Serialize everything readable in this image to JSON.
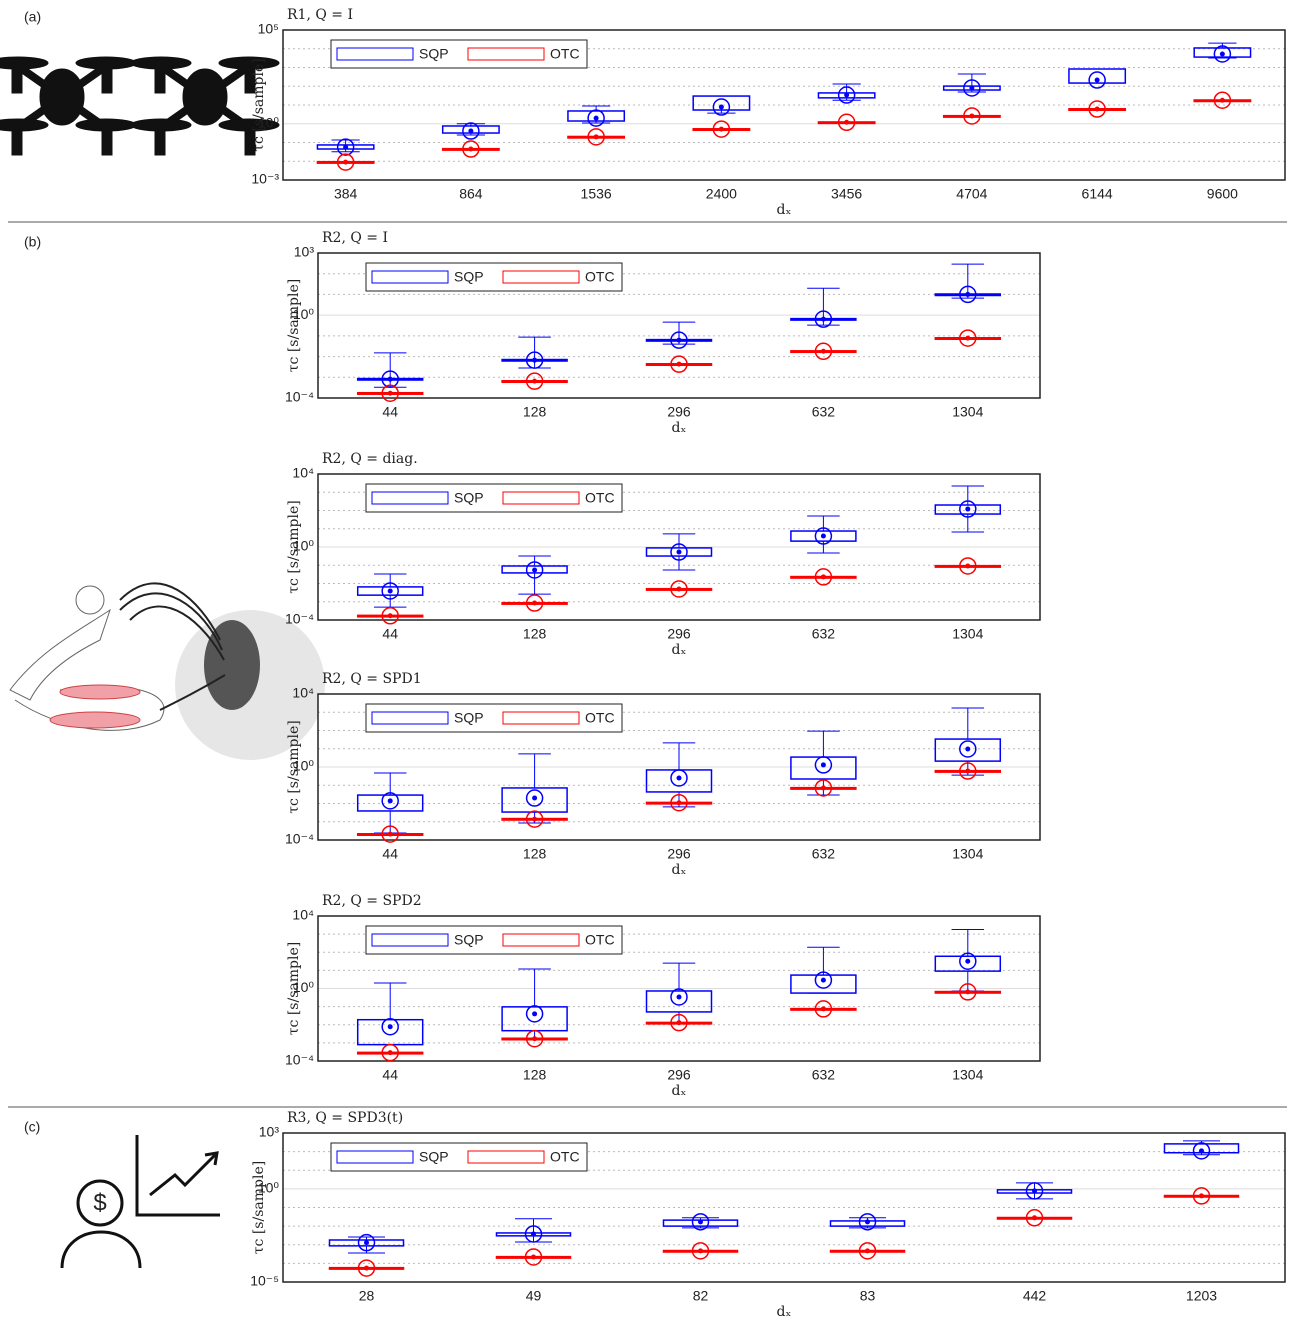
{
  "panel_labels": [
    "(a)",
    "(b)",
    "(c)"
  ],
  "chart_data": [
    {
      "type": "box",
      "title": "R1, Q = I",
      "xlabel": "dₓ",
      "ylabel": "τc [s/sample]",
      "log": true,
      "grid": true,
      "legend": "upper left",
      "categories": [
        "384",
        "864",
        "1536",
        "2400",
        "3456",
        "4704",
        "6144",
        "9600"
      ],
      "ylim": [
        0.001,
        100000
      ],
      "yticks": [
        {
          "value": 0.001,
          "label": "10⁻³"
        },
        {
          "value": 1,
          "label": "10⁰"
        },
        {
          "value": 100000,
          "label": "10⁵"
        }
      ],
      "minor_yticks": [
        0.01,
        0.1,
        10,
        100,
        1000,
        10000
      ],
      "series": [
        {
          "name": "SQP",
          "color": "#0000ff",
          "median": [
            0.057,
            0.41,
            2.0,
            7.8,
            34,
            81,
            214,
            5250
          ],
          "q1": [
            0.045,
            0.32,
            1.4,
            5.4,
            24,
            63,
            148,
            3600
          ],
          "q3": [
            0.074,
            0.76,
            4.8,
            30,
            44,
            102,
            832,
            11000
          ],
          "whislo": [
            0.032,
            0.25,
            1.1,
            3.7,
            18,
            49,
            148,
            3200
          ],
          "whishi": [
            0.135,
            1.0,
            8.9,
            30,
            132,
            447,
            832,
            20000
          ]
        },
        {
          "name": "OTC",
          "color": "#ff0000",
          "median": [
            0.009,
            0.045,
            0.2,
            0.52,
            1.2,
            2.6,
            6.1,
            18
          ],
          "q1": [
            0.0085,
            0.042,
            0.19,
            0.5,
            1.15,
            2.5,
            5.9,
            17.5
          ],
          "q3": [
            0.0095,
            0.047,
            0.21,
            0.54,
            1.25,
            2.7,
            6.3,
            18.5
          ]
        }
      ]
    },
    {
      "type": "box",
      "title": "R2, Q = I",
      "xlabel": "dₓ",
      "ylabel": "τc [s/sample]",
      "log": true,
      "grid": true,
      "legend": "upper left",
      "categories": [
        "44",
        "128",
        "296",
        "632",
        "1304"
      ],
      "ylim": [
        0.0001,
        1000
      ],
      "yticks": [
        {
          "value": 0.0001,
          "label": "10⁻⁴"
        },
        {
          "value": 1,
          "label": "10⁰"
        },
        {
          "value": 1000,
          "label": "10³"
        }
      ],
      "minor_yticks": [
        0.001,
        0.01,
        0.1,
        10,
        100
      ],
      "series": [
        {
          "name": "SQP",
          "color": "#0000ff",
          "median": [
            0.00081,
            0.0067,
            0.062,
            0.64,
            10
          ],
          "q1": [
            0.00075,
            0.0062,
            0.058,
            0.6,
            9.5
          ],
          "q3": [
            0.00087,
            0.0072,
            0.066,
            0.68,
            10.5
          ],
          "whislo": [
            0.00033,
            0.0028,
            0.04,
            0.33,
            6.6
          ],
          "whishi": [
            0.015,
            0.087,
            0.46,
            20,
            290
          ]
        },
        {
          "name": "OTC",
          "color": "#ff0000",
          "median": [
            0.00017,
            0.00065,
            0.0043,
            0.018,
            0.078
          ],
          "q1": [
            0.00016,
            0.00062,
            0.0041,
            0.017,
            0.075
          ],
          "q3": [
            0.00018,
            0.00068,
            0.0045,
            0.019,
            0.081
          ]
        }
      ]
    },
    {
      "type": "box",
      "title": "R2, Q = diag.",
      "xlabel": "dₓ",
      "ylabel": "τc [s/sample]",
      "log": true,
      "grid": true,
      "legend": "upper left",
      "categories": [
        "44",
        "128",
        "296",
        "632",
        "1304"
      ],
      "ylim": [
        0.0001,
        10000
      ],
      "yticks": [
        {
          "value": 0.0001,
          "label": "10⁻⁴"
        },
        {
          "value": 1,
          "label": "10⁰"
        },
        {
          "value": 10000,
          "label": "10⁴"
        }
      ],
      "minor_yticks": [
        0.001,
        0.01,
        0.1,
        10,
        100,
        1000
      ],
      "series": [
        {
          "name": "SQP",
          "color": "#0000ff",
          "median": [
            0.0039,
            0.055,
            0.53,
            4,
            120
          ],
          "q1": [
            0.0023,
            0.038,
            0.32,
            2.1,
            64
          ],
          "q3": [
            0.0065,
            0.091,
            0.89,
            7.5,
            200
          ],
          "whislo": [
            0.00051,
            0.0026,
            0.055,
            0.47,
            6.6
          ],
          "whishi": [
            0.033,
            0.32,
            5.2,
            50,
            2200
          ]
        },
        {
          "name": "OTC",
          "color": "#ff0000",
          "median": [
            0.00017,
            0.00085,
            0.005,
            0.023,
            0.091
          ],
          "q1": [
            0.00016,
            0.00081,
            0.0048,
            0.022,
            0.087
          ],
          "q3": [
            0.00018,
            0.00089,
            0.0052,
            0.024,
            0.095
          ]
        }
      ]
    },
    {
      "type": "box",
      "title": "R2, Q = SPD1",
      "xlabel": "dₓ",
      "ylabel": "τc [s/sample]",
      "log": true,
      "grid": true,
      "legend": "upper left",
      "categories": [
        "44",
        "128",
        "296",
        "632",
        "1304"
      ],
      "ylim": [
        0.0001,
        10000
      ],
      "yticks": [
        {
          "value": 0.0001,
          "label": "10⁻⁴"
        },
        {
          "value": 1,
          "label": "10⁰"
        },
        {
          "value": 10000,
          "label": "10⁴"
        }
      ],
      "minor_yticks": [
        0.001,
        0.01,
        0.1,
        10,
        100,
        1000
      ],
      "series": [
        {
          "name": "SQP",
          "color": "#0000ff",
          "median": [
            0.014,
            0.02,
            0.25,
            1.3,
            9.7
          ],
          "q1": [
            0.0039,
            0.0034,
            0.043,
            0.22,
            2.1
          ],
          "q3": [
            0.029,
            0.071,
            0.69,
            3.5,
            34
          ],
          "whislo": [
            0.00024,
            0.00085,
            0.0065,
            0.029,
            0.36
          ],
          "whishi": [
            0.47,
            5.2,
            21,
            93,
            1700
          ]
        },
        {
          "name": "OTC",
          "color": "#ff0000",
          "median": [
            0.00021,
            0.0014,
            0.011,
            0.071,
            0.6
          ],
          "q1": [
            0.0002,
            0.0013,
            0.0105,
            0.068,
            0.57
          ],
          "q3": [
            0.00022,
            0.0015,
            0.0115,
            0.074,
            0.63
          ]
        }
      ]
    },
    {
      "type": "box",
      "title": "R2, Q = SPD2",
      "xlabel": "dₓ",
      "ylabel": "τc [s/sample]",
      "log": true,
      "grid": true,
      "legend": "upper left",
      "categories": [
        "44",
        "128",
        "296",
        "632",
        "1304"
      ],
      "ylim": [
        0.0001,
        10000
      ],
      "yticks": [
        {
          "value": 0.0001,
          "label": "10⁻⁴"
        },
        {
          "value": 1,
          "label": "10⁰"
        },
        {
          "value": 10000,
          "label": "10⁴"
        }
      ],
      "minor_yticks": [
        0.001,
        0.01,
        0.1,
        10,
        100,
        1000
      ],
      "series": [
        {
          "name": "SQP",
          "color": "#0000ff",
          "median": [
            0.0078,
            0.04,
            0.34,
            2.9,
            32
          ],
          "q1": [
            0.0008,
            0.0047,
            0.051,
            0.56,
            9.1
          ],
          "q3": [
            0.019,
            0.097,
            0.73,
            5.5,
            60
          ],
          "whislo": [
            0.0008,
            0.0015,
            0.011,
            0.56,
            0.73
          ],
          "whishi": [
            2,
            12,
            25,
            190,
            1800
          ]
        },
        {
          "name": "OTC",
          "color": "#ff0000",
          "median": [
            0.00029,
            0.0017,
            0.013,
            0.075,
            0.65
          ],
          "q1": [
            0.00028,
            0.0016,
            0.0125,
            0.072,
            0.62
          ],
          "q3": [
            0.0003,
            0.0018,
            0.0135,
            0.078,
            0.68
          ]
        }
      ]
    },
    {
      "type": "box",
      "title": "R3, Q = SPD3(t)",
      "xlabel": "dₓ",
      "ylabel": "τc [s/sample]",
      "log": true,
      "grid": true,
      "legend": "upper left",
      "categories": [
        "28",
        "49",
        "82",
        "83",
        "442",
        "1203"
      ],
      "ylim": [
        1e-05,
        1000
      ],
      "yticks": [
        {
          "value": 1e-05,
          "label": "10⁻⁵"
        },
        {
          "value": 1,
          "label": "10⁰"
        },
        {
          "value": 1000,
          "label": "10³"
        }
      ],
      "minor_yticks": [
        0.0001,
        0.001,
        0.01,
        0.1,
        10,
        100
      ],
      "series": [
        {
          "name": "SQP",
          "color": "#0000ff",
          "median": [
            0.0013,
            0.0038,
            0.017,
            0.017,
            0.78,
            110
          ],
          "q1": [
            0.00087,
            0.003,
            0.01,
            0.01,
            0.6,
            87
          ],
          "q3": [
            0.0018,
            0.0043,
            0.021,
            0.019,
            0.89,
            260
          ],
          "whislo": [
            0.00036,
            0.0014,
            0.008,
            0.008,
            0.29,
            68
          ],
          "whishi": [
            0.0026,
            0.025,
            0.028,
            0.028,
            2.1,
            380
          ]
        },
        {
          "name": "OTC",
          "color": "#ff0000",
          "median": [
            5.6e-05,
            0.00022,
            0.00047,
            0.00047,
            0.028,
            0.42
          ],
          "q1": [
            5.3e-05,
            0.00021,
            0.00045,
            0.00045,
            0.027,
            0.4
          ],
          "q3": [
            5.9e-05,
            0.00023,
            0.00049,
            0.00049,
            0.029,
            0.44
          ]
        }
      ]
    }
  ]
}
